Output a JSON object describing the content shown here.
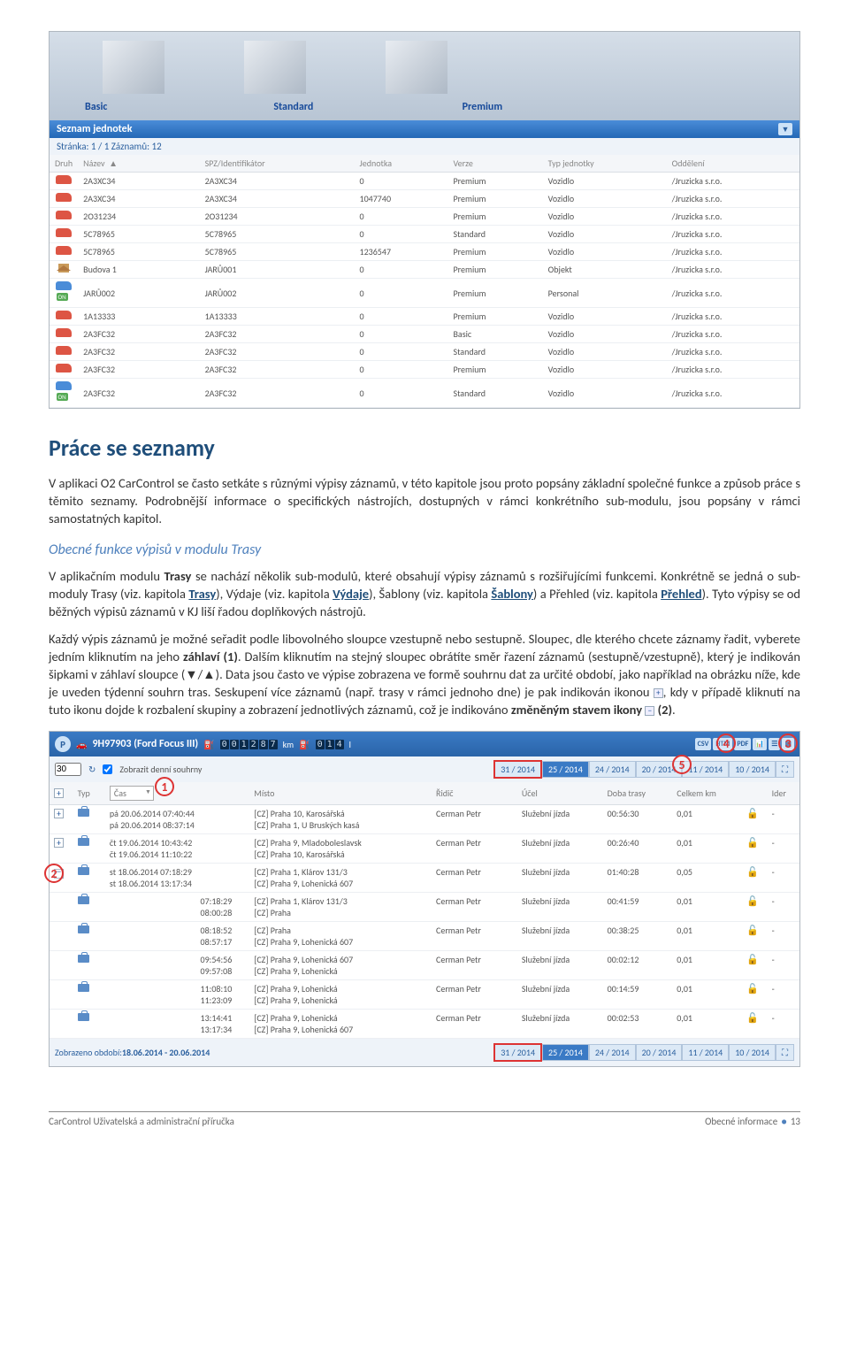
{
  "plans": {
    "basic": "Basic",
    "standard": "Standard",
    "premium": "Premium"
  },
  "listHeader": {
    "title": "Seznam jednotek",
    "pageInfo": "Stránka: 1 / 1  Záznamů: 12"
  },
  "tbl1": {
    "cols": [
      "Druh",
      "Název",
      "",
      "SPZ/Identifikátor",
      "Jednotka",
      "Verze",
      "Typ jednotky",
      "Oddělení"
    ],
    "sortMark": "▲",
    "rows": [
      {
        "icon": "car",
        "n": "2A3XC34",
        "s": "2A3XC34",
        "j": "0",
        "v": "Premium",
        "t": "Vozidlo",
        "o": "/Jruzicka s.r.o."
      },
      {
        "icon": "car",
        "n": "2A3XC34",
        "s": "2A3XC34",
        "j": "1047740",
        "v": "Premium",
        "t": "Vozidlo",
        "o": "/Jruzicka s.r.o."
      },
      {
        "icon": "car",
        "n": "2O31234",
        "s": "2O31234",
        "j": "0",
        "v": "Premium",
        "t": "Vozidlo",
        "o": "/Jruzicka s.r.o."
      },
      {
        "icon": "car",
        "n": "5C78965",
        "s": "5C78965",
        "j": "0",
        "v": "Standard",
        "t": "Vozidlo",
        "o": "/Jruzicka s.r.o."
      },
      {
        "icon": "car",
        "n": "5C78965",
        "s": "5C78965",
        "j": "1236547",
        "v": "Premium",
        "t": "Vozidlo",
        "o": "/Jruzicka s.r.o."
      },
      {
        "icon": "home",
        "n": "Budova 1",
        "s": "JARŮ001",
        "j": "0",
        "v": "Premium",
        "t": "Objekt",
        "o": "/Jruzicka s.r.o."
      },
      {
        "icon": "carb",
        "n": "JARŮ002",
        "s": "JARŮ002",
        "j": "0",
        "v": "Premium",
        "t": "Personal",
        "o": "/Jruzicka s.r.o."
      },
      {
        "icon": "car",
        "n": "1A13333",
        "s": "1A13333",
        "j": "0",
        "v": "Premium",
        "t": "Vozidlo",
        "o": "/Jruzicka s.r.o."
      },
      {
        "icon": "car",
        "n": "2A3FC32",
        "s": "2A3FC32",
        "j": "0",
        "v": "Basic",
        "t": "Vozidlo",
        "o": "/Jruzicka s.r.o."
      },
      {
        "icon": "car",
        "n": "2A3FC32",
        "s": "2A3FC32",
        "j": "0",
        "v": "Standard",
        "t": "Vozidlo",
        "o": "/Jruzicka s.r.o."
      },
      {
        "icon": "car",
        "n": "2A3FC32",
        "s": "2A3FC32",
        "j": "0",
        "v": "Premium",
        "t": "Vozidlo",
        "o": "/Jruzicka s.r.o."
      },
      {
        "icon": "carb",
        "n": "2A3FC32",
        "s": "2A3FC32",
        "j": "0",
        "v": "Standard",
        "t": "Vozidlo",
        "o": "/Jruzicka s.r.o."
      }
    ]
  },
  "h1": "Práce se seznamy",
  "p1a": "V aplikaci  O2 CarControl  se často setkáte s různými výpisy záznamů, v této kapitole jsou proto popsány základní společné funkce a způsob práce s těmito seznamy. Podrobnější informace o specifických nástrojích, dostupných v rámci konkrétního sub-modulu, jsou popsány v rámci samostatných kapitol.",
  "subhead": "Obecné funkce výpisů v modulu Trasy",
  "p2_1": "V aplikačním modulu ",
  "p2_b1": "Trasy",
  "p2_2": " se nachází několik sub-modulů, které obsahují výpisy záznamů s rozšiřujícími funkcemi. Konkrétně se jedná o sub-moduly Trasy (viz. kapitola ",
  "p2_u1": "Trasy",
  "p2_3": "), Výdaje (viz. kapitola ",
  "p2_u2": "Výdaje",
  "p2_4": "), Šablony (viz. kapitola ",
  "p2_u3": "Šablony",
  "p2_5": ") a Přehled (viz. kapitola ",
  "p2_u4": "Přehled",
  "p2_6": "). Tyto výpisy se od běžných výpisů záznamů v KJ liší řadou doplňkových nástrojů.",
  "p3_1": "Každý výpis záznamů je možné seřadit podle libovolného sloupce vzestupně nebo sestupně. Sloupec, dle kterého chcete záznamy řadit, vyberete jedním kliknutím na jeho ",
  "p3_b1": "záhlaví (1)",
  "p3_2": ". Dalším kliknutím na stejný sloupec obrátíte směr řazení záznamů (sestupně/vzestupně), který je indikován šipkami v záhlaví sloupce (▼/▲). Data jsou často ve výpise zobrazena ve formě souhrnu dat za určité období, jako například na obrázku níže, kde je uveden týdenní souhrn tras. Seskupení více záznamů (např. trasy v rámci jednoho dne) je pak indikován ikonou ",
  "p3_3": ", kdy v případě kliknutí na tuto ikonu dojde k rozbalení skupiny a zobrazení jednotlivých záznamů, což je indikováno ",
  "p3_b2": "změněným stavem ikony ",
  "p3_b3": " (2)",
  "p3_4": ".",
  "sc2": {
    "p": "P",
    "vehicle": "9H97903 (Ford Focus III)",
    "odo1": [
      "0",
      "0",
      "1",
      "2",
      "8",
      "7"
    ],
    "odoUnit1": "km",
    "odo2": [
      "0",
      "1",
      "4"
    ],
    "odoUnit2": "l",
    "exports": [
      "CSV",
      "HTM",
      "PDF"
    ],
    "qty": "30",
    "chkLabel": "Zobrazit denní souhrny",
    "weeks": [
      "31 / 2014",
      "25 / 2014",
      "24 / 2014",
      "20 / 2014",
      "11 / 2014",
      "10 / 2014"
    ],
    "cols": {
      "plus": "",
      "typ": "Typ",
      "cas": "Čas",
      "misto": "Místo",
      "ridic": "Řidič",
      "ucel": "Účel",
      "doba": "Doba trasy",
      "km": "Celkem km",
      "lock": "",
      "ider": "Ider"
    },
    "casDropdown": "Čas",
    "rows": [
      {
        "exp": "+",
        "d1": "pá 20.06.2014 07:40:44",
        "d2": "pá 20.06.2014 08:37:14",
        "m1": "[CZ] Praha 10, Karosářská",
        "m2": "[CZ] Praha 1, U Bruských kasá",
        "r": "Cerman Petr",
        "u": "Služební jízda",
        "t": "00:56:30",
        "km": "0,01",
        "i": "-"
      },
      {
        "exp": "+",
        "d1": "čt 19.06.2014 10:43:42",
        "d2": "čt 19.06.2014 11:10:22",
        "m1": "[CZ] Praha 9, Mladoboleslavsk",
        "m2": "[CZ] Praha 10, Karosářská",
        "r": "Cerman Petr",
        "u": "Služební jízda",
        "t": "00:26:40",
        "km": "0,01",
        "i": "-"
      },
      {
        "exp": "-",
        "d1": "st 18.06.2014 07:18:29",
        "d2": "st 18.06.2014 13:17:34",
        "m1": "[CZ] Praha 1, Klárov 131/3",
        "m2": "[CZ] Praha 9, Lohenická 607",
        "r": "Cerman Petr",
        "u": "Služební jízda",
        "t": "01:40:28",
        "km": "0,05",
        "i": "-"
      }
    ],
    "subrows": [
      {
        "t1": "07:18:29",
        "t2": "08:00:28",
        "m1": "[CZ] Praha 1, Klárov 131/3",
        "m2": "[CZ] Praha",
        "r": "Cerman Petr",
        "u": "Služební jízda",
        "d": "00:41:59",
        "km": "0,01",
        "i": "-"
      },
      {
        "t1": "08:18:52",
        "t2": "08:57:17",
        "m1": "[CZ] Praha",
        "m2": "[CZ] Praha 9, Lohenická 607",
        "r": "Cerman Petr",
        "u": "Služební jízda",
        "d": "00:38:25",
        "km": "0,01",
        "i": "-"
      },
      {
        "t1": "09:54:56",
        "t2": "09:57:08",
        "m1": "[CZ] Praha 9, Lohenická 607",
        "m2": "[CZ] Praha 9, Lohenická",
        "r": "Cerman Petr",
        "u": "Služební jízda",
        "d": "00:02:12",
        "km": "0,01",
        "i": "-"
      },
      {
        "t1": "11:08:10",
        "t2": "11:23:09",
        "m1": "[CZ] Praha 9, Lohenická",
        "m2": "[CZ] Praha 9, Lohenická",
        "r": "Cerman Petr",
        "u": "Služební jízda",
        "d": "00:14:59",
        "km": "0,01",
        "i": "-"
      },
      {
        "t1": "13:14:41",
        "t2": "13:17:34",
        "m1": "[CZ] Praha 9, Lohenická",
        "m2": "[CZ] Praha 9, Lohenická 607",
        "r": "Cerman Petr",
        "u": "Služební jízda",
        "d": "00:02:53",
        "km": "0,01",
        "i": "-"
      }
    ],
    "bottomLabel": "Zobrazeno období: ",
    "bottomPeriod": "18.06.2014 - 20.06.2014"
  },
  "footer": {
    "left": "CarControl Uživatelská a administrační příručka",
    "rightLabel": "Obecné informace",
    "page": "13"
  }
}
